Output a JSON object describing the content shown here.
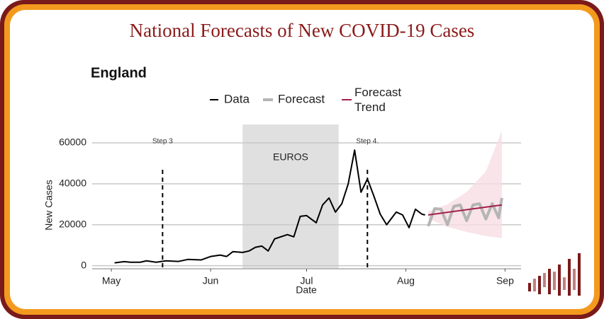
{
  "header": {
    "title": "National Forecasts of New COVID-19 Cases"
  },
  "chart_data": {
    "type": "line",
    "title": "England",
    "xlabel": "Date",
    "ylabel": "New Cases",
    "xlim": [
      115,
      249
    ],
    "ylim": [
      -1500,
      69000
    ],
    "xticks": [
      {
        "value": 121,
        "label": "May"
      },
      {
        "value": 152,
        "label": "Jun"
      },
      {
        "value": 182,
        "label": "Jul"
      },
      {
        "value": 213,
        "label": "Aug"
      },
      {
        "value": 244,
        "label": "Sep"
      }
    ],
    "yticks": [
      0,
      20000,
      40000,
      60000
    ],
    "grid": true,
    "shaded_region": {
      "label": "EUROS",
      "x": [
        162,
        192
      ],
      "color": "#e0e0e0"
    },
    "annotations": [
      {
        "text": "Step 3",
        "x": 137
      },
      {
        "text": "Step 4.",
        "x": 201
      }
    ],
    "series": [
      {
        "name": "Data",
        "color": "#000000",
        "x": [
          122,
          125,
          127,
          130,
          132,
          135,
          138,
          142,
          145,
          149,
          152,
          155,
          157,
          159,
          162,
          164,
          166,
          168,
          170,
          172,
          176,
          178,
          180,
          182,
          185,
          187,
          189,
          191,
          193,
          195,
          197,
          199,
          201,
          203,
          205,
          207,
          210,
          212,
          214,
          216,
          218,
          219
        ],
        "values": [
          1400,
          2000,
          1700,
          1700,
          2400,
          1700,
          2400,
          2100,
          3100,
          2800,
          4500,
          5200,
          4500,
          6900,
          6500,
          7200,
          9000,
          9600,
          7200,
          13100,
          15200,
          14100,
          24100,
          24500,
          21000,
          29700,
          33100,
          26200,
          30300,
          40000,
          56500,
          35900,
          42400,
          34100,
          25200,
          20000,
          26200,
          24800,
          18600,
          27600,
          25200,
          24800
        ]
      },
      {
        "name": "Forecast",
        "color": "#b5b5b5",
        "x": [
          220,
          222,
          224,
          226,
          228,
          230,
          232,
          234,
          236,
          238,
          240,
          242,
          243
        ],
        "values": [
          19300,
          27900,
          27600,
          20000,
          29000,
          29700,
          22000,
          29700,
          30300,
          22800,
          30300,
          23400,
          33100
        ]
      },
      {
        "name": "Forecast Trend",
        "color": "#a3204b",
        "x": [
          220,
          243
        ],
        "values": [
          24800,
          29700
        ]
      }
    ],
    "interval": {
      "color": "#f6dde3",
      "x": [
        220,
        226,
        232,
        238,
        243
      ],
      "lower": [
        23000,
        19000,
        16500,
        14500,
        13500
      ],
      "upper": [
        26500,
        30000,
        36000,
        46000,
        66000
      ]
    }
  }
}
